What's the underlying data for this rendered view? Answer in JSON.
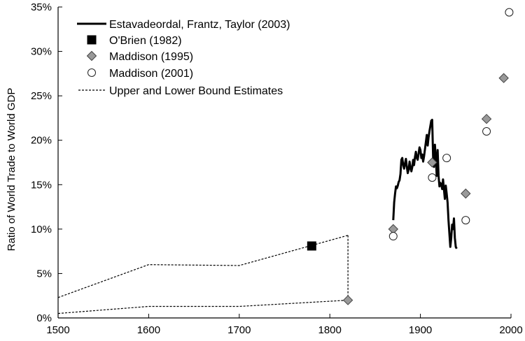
{
  "chart_data": {
    "type": "line",
    "title": "",
    "xlabel": "",
    "ylabel": "Ratio of World Trade to World GDP",
    "xlim": [
      1500,
      2000
    ],
    "ylim": [
      0,
      35
    ],
    "x_ticks": [
      "1500",
      "1600",
      "1700",
      "1800",
      "1900",
      "2000"
    ],
    "y_ticks": [
      "0%",
      "5%",
      "10%",
      "15%",
      "20%",
      "25%",
      "30%",
      "35%"
    ],
    "grid": false,
    "legend_position": "top-left",
    "series": [
      {
        "name": "Estavadeordal, Frantz, Taylor (2003)",
        "type": "line",
        "style": "solid",
        "points": [
          [
            1870,
            11.0
          ],
          [
            1871,
            13.0
          ],
          [
            1872,
            14.0
          ],
          [
            1873,
            14.8
          ],
          [
            1874,
            14.6
          ],
          [
            1875,
            14.9
          ],
          [
            1876,
            15.3
          ],
          [
            1877,
            15.5
          ],
          [
            1878,
            16.2
          ],
          [
            1879,
            17.8
          ],
          [
            1880,
            18.0
          ],
          [
            1881,
            17.2
          ],
          [
            1882,
            16.8
          ],
          [
            1883,
            17.4
          ],
          [
            1884,
            17.9
          ],
          [
            1885,
            17.0
          ],
          [
            1886,
            16.3
          ],
          [
            1887,
            16.7
          ],
          [
            1888,
            17.6
          ],
          [
            1889,
            16.9
          ],
          [
            1890,
            16.5
          ],
          [
            1891,
            17.0
          ],
          [
            1892,
            17.8
          ],
          [
            1893,
            17.2
          ],
          [
            1894,
            18.1
          ],
          [
            1895,
            18.7
          ],
          [
            1896,
            18.0
          ],
          [
            1897,
            17.8
          ],
          [
            1898,
            18.5
          ],
          [
            1899,
            19.2
          ],
          [
            1900,
            18.9
          ],
          [
            1901,
            18.0
          ],
          [
            1902,
            18.4
          ],
          [
            1903,
            17.6
          ],
          [
            1904,
            18.2
          ],
          [
            1905,
            19.0
          ],
          [
            1906,
            19.8
          ],
          [
            1907,
            20.6
          ],
          [
            1908,
            19.4
          ],
          [
            1909,
            20.3
          ],
          [
            1910,
            21.0
          ],
          [
            1911,
            21.6
          ],
          [
            1912,
            22.2
          ],
          [
            1913,
            22.3
          ],
          [
            1914,
            18.2
          ],
          [
            1915,
            17.0
          ],
          [
            1916,
            19.5
          ],
          [
            1917,
            18.0
          ],
          [
            1918,
            16.0
          ],
          [
            1919,
            18.9
          ],
          [
            1920,
            16.0
          ],
          [
            1921,
            14.8
          ],
          [
            1922,
            15.2
          ],
          [
            1923,
            15.0
          ],
          [
            1924,
            14.5
          ],
          [
            1925,
            15.6
          ],
          [
            1926,
            14.5
          ],
          [
            1927,
            13.4
          ],
          [
            1928,
            14.9
          ],
          [
            1929,
            14.0
          ],
          [
            1930,
            13.0
          ],
          [
            1931,
            11.0
          ],
          [
            1932,
            9.5
          ],
          [
            1933,
            8.0
          ],
          [
            1934,
            9.0
          ],
          [
            1935,
            10.5
          ],
          [
            1936,
            10.0
          ],
          [
            1937,
            11.2
          ],
          [
            1938,
            9.0
          ],
          [
            1939,
            8.0
          ],
          [
            1940,
            7.8
          ]
        ]
      },
      {
        "name": "O'Brien (1982)",
        "type": "scatter",
        "marker": "square",
        "points": [
          [
            1780,
            8.1
          ]
        ]
      },
      {
        "name": "Maddison (1995)",
        "type": "scatter",
        "marker": "diamond",
        "points": [
          [
            1820,
            2.0
          ],
          [
            1870,
            10.0
          ],
          [
            1913,
            17.5
          ],
          [
            1950,
            14.0
          ],
          [
            1973,
            22.4
          ],
          [
            1992,
            27.0
          ]
        ]
      },
      {
        "name": "Maddison (2001)",
        "type": "scatter",
        "marker": "circle",
        "points": [
          [
            1870,
            9.2
          ],
          [
            1913,
            15.8
          ],
          [
            1929,
            18.0
          ],
          [
            1950,
            11.0
          ],
          [
            1973,
            21.0
          ],
          [
            1998,
            34.4
          ]
        ]
      },
      {
        "name": "Upper and Lower Bound Estimates",
        "type": "line",
        "style": "dashed",
        "upper": [
          [
            1500,
            2.3
          ],
          [
            1600,
            6.0
          ],
          [
            1700,
            5.9
          ],
          [
            1820,
            9.3
          ]
        ],
        "lower": [
          [
            1500,
            0.5
          ],
          [
            1600,
            1.3
          ],
          [
            1700,
            1.3
          ],
          [
            1820,
            2.0
          ]
        ],
        "vertical_link": [
          [
            1820,
            9.3
          ],
          [
            1820,
            2.0
          ]
        ]
      }
    ],
    "colors": {
      "axis": "#000000",
      "line": "#000000",
      "diamond_fill": "#999999",
      "square_fill": "#000000",
      "circle_fill": "#ffffff"
    }
  }
}
